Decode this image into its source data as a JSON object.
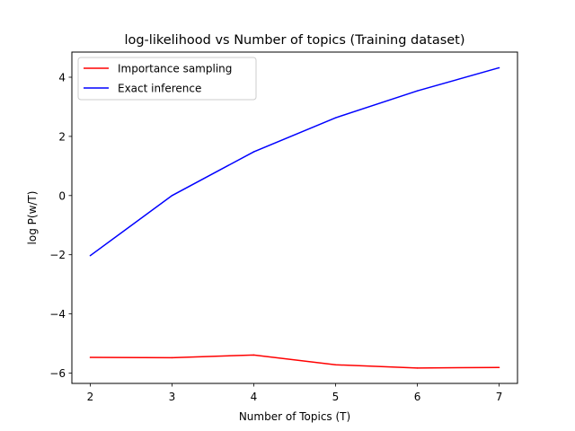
{
  "chart_data": {
    "type": "line",
    "title": "log-likelihood vs Number of topics (Training dataset)",
    "xlabel": "Number of Topics (T)",
    "ylabel": "log P(w/T)",
    "x": [
      2,
      3,
      4,
      5,
      6,
      7
    ],
    "xticks": [
      "2",
      "3",
      "4",
      "5",
      "6",
      "7"
    ],
    "yticks": [
      {
        "value": 4,
        "label": "4"
      },
      {
        "value": 2,
        "label": "2"
      },
      {
        "value": 0,
        "label": "0"
      },
      {
        "value": -2,
        "label": "−2"
      },
      {
        "value": -4,
        "label": "−4"
      },
      {
        "value": -6,
        "label": "−6"
      }
    ],
    "xlim": [
      1.775,
      7.225
    ],
    "ylim": [
      -6.35,
      4.85
    ],
    "grid": false,
    "legend_position": "upper-left",
    "series": [
      {
        "name": "Importance sampling",
        "color": "#ff0000",
        "values": [
          -5.47,
          -5.48,
          -5.39,
          -5.72,
          -5.83,
          -5.81
        ]
      },
      {
        "name": "Exact inference",
        "color": "#0000ff",
        "values": [
          -2.03,
          0.0,
          1.48,
          2.63,
          3.54,
          4.32
        ]
      }
    ]
  }
}
